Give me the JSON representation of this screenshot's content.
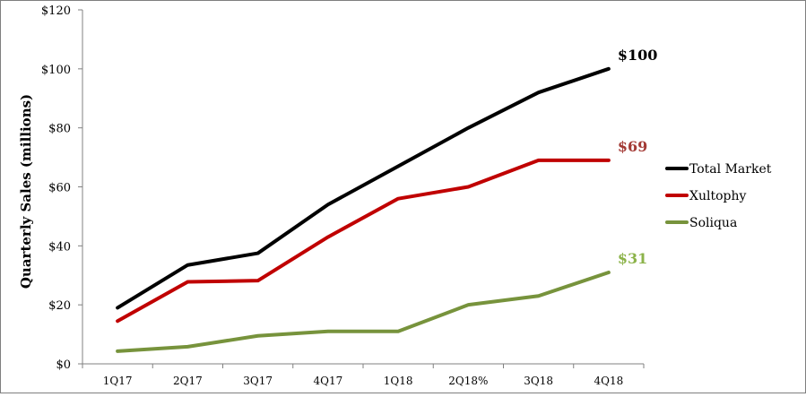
{
  "chart_data": {
    "type": "line",
    "title": "",
    "xlabel": "",
    "ylabel": "Quarterly Sales (millions)",
    "categories": [
      "1Q17",
      "2Q17",
      "3Q17",
      "4Q17",
      "1Q18",
      "2Q18%",
      "3Q18",
      "4Q18"
    ],
    "yticks": [
      "$0",
      "$20",
      "$40",
      "$60",
      "$80",
      "$100",
      "$120"
    ],
    "ylim": [
      0,
      120
    ],
    "grid": false,
    "legend_position": "right",
    "series": [
      {
        "name": "Total Market",
        "color": "#000000",
        "values": [
          19,
          33.5,
          37.5,
          54,
          67,
          80,
          92,
          100
        ],
        "end_label": "$100",
        "end_label_color": "#000000"
      },
      {
        "name": "Xultophy",
        "color": "#c00000",
        "values": [
          14.5,
          27.8,
          28.2,
          43,
          56,
          60,
          69,
          69
        ],
        "end_label": "$69",
        "end_label_color": "#a33a35"
      },
      {
        "name": "Soliqua",
        "color": "#77933c",
        "values": [
          4.3,
          5.8,
          9.5,
          11,
          11,
          20,
          23,
          31
        ],
        "end_label": "$31",
        "end_label_color": "#8cb34a"
      }
    ]
  }
}
